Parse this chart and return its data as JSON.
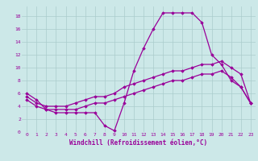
{
  "xlabel": "Windchill (Refroidissement éolien,°C)",
  "background_color": "#cce8e8",
  "line_color": "#990099",
  "grid_color": "#aacccc",
  "xlim": [
    -0.5,
    23.5
  ],
  "ylim": [
    0,
    19.5
  ],
  "xticks": [
    0,
    1,
    2,
    3,
    4,
    5,
    6,
    7,
    8,
    9,
    10,
    11,
    12,
    13,
    14,
    15,
    16,
    17,
    18,
    19,
    20,
    21,
    22,
    23
  ],
  "yticks": [
    0,
    2,
    4,
    6,
    8,
    10,
    12,
    14,
    16,
    18
  ],
  "line1_x": [
    0,
    1,
    2,
    3,
    4,
    5,
    6,
    7,
    8,
    9,
    10,
    11,
    12,
    13,
    14,
    15,
    16,
    17,
    18,
    19,
    20,
    21,
    22,
    23
  ],
  "line1_y": [
    6.0,
    5.0,
    3.5,
    3.0,
    3.0,
    3.0,
    3.0,
    3.0,
    1.0,
    0.2,
    4.5,
    9.5,
    13.0,
    16.0,
    18.5,
    18.5,
    18.5,
    18.5,
    17.0,
    12.0,
    10.5,
    8.0,
    7.0,
    4.5
  ],
  "line2_x": [
    0,
    1,
    2,
    3,
    4,
    5,
    6,
    7,
    8,
    9,
    10,
    11,
    12,
    13,
    14,
    15,
    16,
    17,
    18,
    19,
    20,
    21,
    22,
    23
  ],
  "line2_y": [
    5.5,
    4.5,
    4.0,
    4.0,
    4.0,
    4.5,
    5.0,
    5.5,
    5.5,
    6.0,
    7.0,
    7.5,
    8.0,
    8.5,
    9.0,
    9.5,
    9.5,
    10.0,
    10.5,
    10.5,
    11.0,
    10.0,
    9.0,
    4.5
  ],
  "line3_x": [
    0,
    1,
    2,
    3,
    4,
    5,
    6,
    7,
    8,
    9,
    10,
    11,
    12,
    13,
    14,
    15,
    16,
    17,
    18,
    19,
    20,
    21,
    22,
    23
  ],
  "line3_y": [
    5.0,
    4.0,
    3.5,
    3.5,
    3.5,
    3.5,
    4.0,
    4.5,
    4.5,
    5.0,
    5.5,
    6.0,
    6.5,
    7.0,
    7.5,
    8.0,
    8.0,
    8.5,
    9.0,
    9.0,
    9.5,
    8.5,
    7.0,
    4.5
  ],
  "marker": "D",
  "markersize": 1.8,
  "linewidth": 0.9,
  "tick_fontsize": 4.5,
  "xlabel_fontsize": 5.5
}
